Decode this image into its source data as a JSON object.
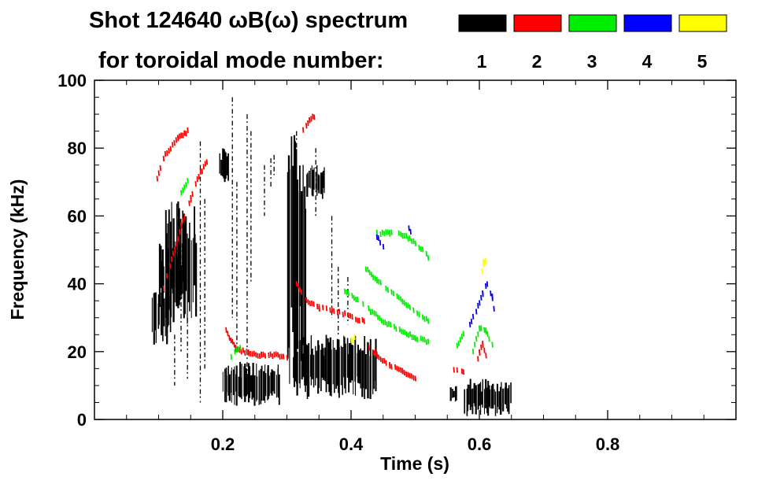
{
  "chart_data": {
    "type": "scatter",
    "title_line1": "Shot 124640 ωB(ω) spectrum",
    "title_line2": "for toroidal mode number:",
    "xlabel": "Time (s)",
    "ylabel": "Frequency (kHz)",
    "xlim": [
      0.0,
      1.0
    ],
    "ylim": [
      0,
      100
    ],
    "xticks": [
      {
        "value": 0.2,
        "label": "0.2"
      },
      {
        "value": 0.4,
        "label": "0.4"
      },
      {
        "value": 0.6,
        "label": "0.6"
      },
      {
        "value": 0.8,
        "label": "0.8"
      }
    ],
    "yticks": [
      {
        "value": 0,
        "label": "0"
      },
      {
        "value": 20,
        "label": "20"
      },
      {
        "value": 40,
        "label": "40"
      },
      {
        "value": 60,
        "label": "60"
      },
      {
        "value": 80,
        "label": "80"
      },
      {
        "value": 100,
        "label": "100"
      }
    ],
    "legend_placement": "top-right",
    "series": [
      {
        "name": "1",
        "color": "#000000",
        "blobs": [
          {
            "t0": 0.09,
            "t1": 0.12,
            "f0": 22,
            "f1": 40
          },
          {
            "t0": 0.11,
            "t1": 0.16,
            "f0": 28,
            "f1": 65
          },
          {
            "t0": 0.1,
            "t1": 0.14,
            "f0": 32,
            "f1": 52
          },
          {
            "t0": 0.195,
            "t1": 0.21,
            "f0": 70,
            "f1": 80
          },
          {
            "t0": 0.2,
            "t1": 0.29,
            "f0": 4,
            "f1": 17
          },
          {
            "t0": 0.3,
            "t1": 0.33,
            "f0": 8,
            "f1": 86
          },
          {
            "t0": 0.31,
            "t1": 0.44,
            "f0": 6,
            "f1": 25
          },
          {
            "t0": 0.33,
            "t1": 0.36,
            "f0": 65,
            "f1": 75
          },
          {
            "t0": 0.555,
            "t1": 0.565,
            "f0": 5,
            "f1": 10
          },
          {
            "t0": 0.575,
            "t1": 0.65,
            "f0": 1,
            "f1": 12
          }
        ],
        "streaks": [
          {
            "t": 0.125,
            "f0": 10,
            "f1": 25
          },
          {
            "t": 0.135,
            "f0": 20,
            "f1": 52
          },
          {
            "t": 0.145,
            "f0": 12,
            "f1": 30
          },
          {
            "t": 0.165,
            "f0": 5,
            "f1": 82
          },
          {
            "t": 0.172,
            "f0": 15,
            "f1": 65
          },
          {
            "t": 0.215,
            "f0": 30,
            "f1": 95
          },
          {
            "t": 0.222,
            "f0": 20,
            "f1": 70
          },
          {
            "t": 0.238,
            "f0": 10,
            "f1": 90
          },
          {
            "t": 0.244,
            "f0": 40,
            "f1": 85
          },
          {
            "t": 0.265,
            "f0": 60,
            "f1": 75
          },
          {
            "t": 0.275,
            "f0": 68,
            "f1": 77
          },
          {
            "t": 0.28,
            "f0": 72,
            "f1": 78
          },
          {
            "t": 0.315,
            "f0": 10,
            "f1": 85
          },
          {
            "t": 0.345,
            "f0": 60,
            "f1": 80
          },
          {
            "t": 0.37,
            "f0": 30,
            "f1": 60
          },
          {
            "t": 0.38,
            "f0": 25,
            "f1": 45
          },
          {
            "t": 0.395,
            "f0": 28,
            "f1": 42
          }
        ]
      },
      {
        "name": "2",
        "color": "#ff0000",
        "trails": [
          [
            [
              0.105,
              37
            ],
            [
              0.12,
              47
            ],
            [
              0.135,
              57
            ],
            [
              0.15,
              65
            ],
            [
              0.16,
              71
            ],
            [
              0.175,
              76
            ]
          ],
          [
            [
              0.095,
              70
            ],
            [
              0.11,
              78
            ],
            [
              0.13,
              83
            ],
            [
              0.145,
              85
            ]
          ],
          [
            [
              0.205,
              26
            ],
            [
              0.22,
              21
            ],
            [
              0.24,
              19.5
            ],
            [
              0.26,
              19
            ],
            [
              0.28,
              19
            ],
            [
              0.3,
              18.5
            ]
          ],
          [
            [
              0.315,
              40
            ],
            [
              0.33,
              35
            ],
            [
              0.35,
              33
            ],
            [
              0.37,
              32
            ],
            [
              0.39,
              31
            ],
            [
              0.41,
              29.5
            ],
            [
              0.42,
              29
            ]
          ],
          [
            [
              0.425,
              22
            ],
            [
              0.44,
              19
            ],
            [
              0.46,
              16
            ],
            [
              0.48,
              14
            ],
            [
              0.5,
              12
            ]
          ],
          [
            [
              0.325,
              85
            ],
            [
              0.335,
              88
            ],
            [
              0.345,
              90
            ]
          ],
          [
            [
              0.56,
              15
            ],
            [
              0.575,
              14
            ]
          ],
          [
            [
              0.595,
              16
            ],
            [
              0.6,
              20
            ],
            [
              0.605,
              22
            ],
            [
              0.61,
              19
            ]
          ]
        ]
      },
      {
        "name": "3",
        "color": "#00ee00",
        "trails": [
          [
            [
              0.39,
              38
            ],
            [
              0.41,
              35
            ],
            [
              0.43,
              32
            ],
            [
              0.45,
              29
            ],
            [
              0.47,
              27
            ],
            [
              0.5,
              24
            ],
            [
              0.52,
              23
            ]
          ],
          [
            [
              0.44,
              55
            ],
            [
              0.46,
              55
            ],
            [
              0.48,
              54.5
            ],
            [
              0.5,
              52
            ],
            [
              0.52,
              48
            ]
          ],
          [
            [
              0.42,
              45
            ],
            [
              0.44,
              41
            ],
            [
              0.46,
              38
            ],
            [
              0.48,
              35
            ],
            [
              0.5,
              32
            ],
            [
              0.52,
              29
            ]
          ],
          [
            [
              0.21,
              18
            ],
            [
              0.23,
              22
            ]
          ],
          [
            [
              0.565,
              22
            ],
            [
              0.575,
              25
            ]
          ],
          [
            [
              0.59,
              20
            ],
            [
              0.6,
              27
            ],
            [
              0.61,
              26
            ],
            [
              0.62,
              22
            ]
          ],
          [
            [
              0.135,
              67
            ],
            [
              0.145,
              70
            ]
          ]
        ]
      },
      {
        "name": "4",
        "color": "#0000ff",
        "trails": [
          [
            [
              0.585,
              28
            ],
            [
              0.595,
              32
            ],
            [
              0.605,
              37
            ],
            [
              0.612,
              40
            ],
            [
              0.62,
              36
            ],
            [
              0.625,
              30
            ]
          ],
          [
            [
              0.44,
              54
            ],
            [
              0.45,
              51
            ]
          ],
          [
            [
              0.49,
              56
            ],
            [
              0.495,
              55
            ]
          ]
        ]
      },
      {
        "name": "5",
        "color": "#ffff00",
        "trails": [
          [
            [
              0.602,
              42
            ],
            [
              0.606,
              46
            ],
            [
              0.61,
              47
            ]
          ],
          [
            [
              0.4,
              23
            ],
            [
              0.405,
              24
            ]
          ]
        ]
      }
    ]
  }
}
